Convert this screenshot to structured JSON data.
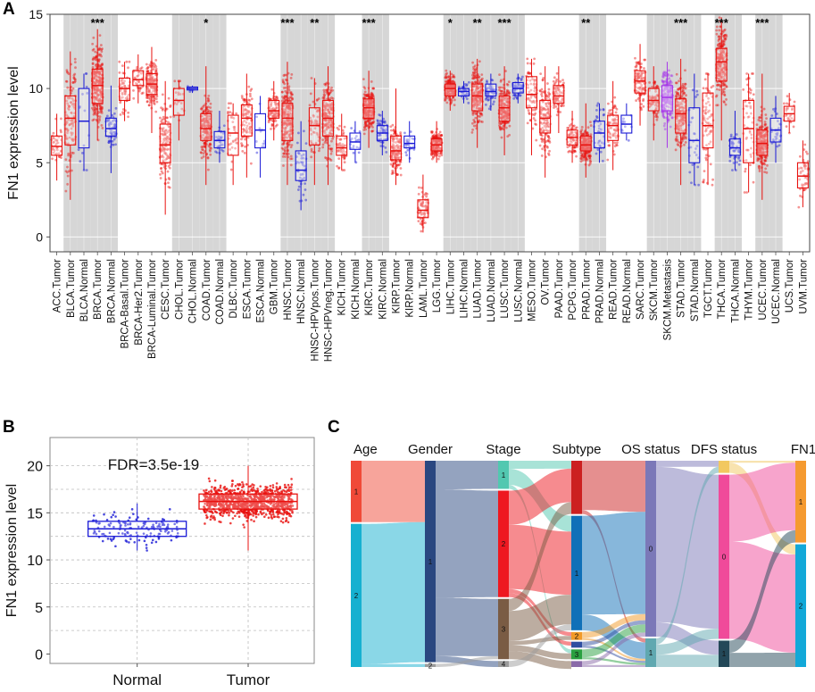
{
  "panels": {
    "a": "A",
    "b": "B",
    "c": "C"
  },
  "chart_data": [
    {
      "type": "box",
      "ylabel": "FN1 expression level",
      "ylim": [
        -1,
        15
      ],
      "yticks": [
        0,
        5,
        10,
        15
      ],
      "colors": {
        "tumor": "#e8120f",
        "normal": "#1a1ad6",
        "metastasis": "#a637e8",
        "shade": "#d6d6d6"
      },
      "groups": [
        {
          "label": "ACC.Tumor",
          "kind": "tumor",
          "q1": 5.5,
          "median": 6.1,
          "q3": 6.8,
          "min": 3.8,
          "max": 8.3,
          "n": 40
        },
        {
          "label": "BLCA.Tumor",
          "kind": "tumor",
          "q1": 6.2,
          "median": 8.0,
          "q3": 9.5,
          "min": 2.5,
          "max": 12.5,
          "n": 120,
          "shade": true
        },
        {
          "label": "BLCA.Normal",
          "kind": "normal",
          "q1": 6.0,
          "median": 7.8,
          "q3": 10.0,
          "min": 4.5,
          "max": 11.0,
          "n": 15,
          "shade": true
        },
        {
          "label": "BRCA.Tumor",
          "kind": "tumor",
          "q1": 9.0,
          "median": 10.2,
          "q3": 11.3,
          "min": 6.5,
          "max": 14.0,
          "n": 300,
          "shade": true,
          "sig": "***"
        },
        {
          "label": "BRCA.Normal",
          "kind": "normal",
          "q1": 6.8,
          "median": 7.3,
          "q3": 8.0,
          "min": 4.3,
          "max": 10.2,
          "n": 60,
          "shade": true
        },
        {
          "label": "BRCA-Basal.Tumor",
          "kind": "tumor",
          "q1": 9.2,
          "median": 10.0,
          "q3": 10.7,
          "min": 7.8,
          "max": 11.8,
          "n": 60
        },
        {
          "label": "BRCA-Her2.Tumor",
          "kind": "tumor",
          "q1": 10.2,
          "median": 10.6,
          "q3": 11.2,
          "min": 9.0,
          "max": 12.3,
          "n": 40
        },
        {
          "label": "BRCA-Luminal.Tumor",
          "kind": "tumor",
          "q1": 9.6,
          "median": 10.3,
          "q3": 11.0,
          "min": 7.0,
          "max": 12.8,
          "n": 180
        },
        {
          "label": "CESC.Tumor",
          "kind": "tumor",
          "q1": 5.0,
          "median": 6.2,
          "q3": 7.6,
          "min": 1.5,
          "max": 10.5,
          "n": 150
        },
        {
          "label": "CHOL.Tumor",
          "kind": "tumor",
          "q1": 8.2,
          "median": 9.2,
          "q3": 10.0,
          "min": 6.5,
          "max": 10.5,
          "n": 25,
          "shade": true
        },
        {
          "label": "CHOL.Normal",
          "kind": "normal",
          "q1": 9.9,
          "median": 10.0,
          "q3": 10.1,
          "min": 9.7,
          "max": 10.2,
          "n": 8,
          "shade": true
        },
        {
          "label": "COAD.Tumor",
          "kind": "tumor",
          "q1": 6.5,
          "median": 7.3,
          "q3": 8.3,
          "min": 3.5,
          "max": 11.5,
          "n": 180,
          "shade": true,
          "sig": "*"
        },
        {
          "label": "COAD.Normal",
          "kind": "normal",
          "q1": 6.0,
          "median": 6.5,
          "q3": 7.1,
          "min": 5.0,
          "max": 8.5,
          "n": 30,
          "shade": true
        },
        {
          "label": "DLBC.Tumor",
          "kind": "tumor",
          "q1": 5.5,
          "median": 7.0,
          "q3": 8.2,
          "min": 3.5,
          "max": 9.0,
          "n": 40
        },
        {
          "label": "ESCA.Tumor",
          "kind": "tumor",
          "q1": 6.8,
          "median": 8.0,
          "q3": 8.9,
          "min": 4.0,
          "max": 11.0,
          "n": 100
        },
        {
          "label": "ESCA.Normal",
          "kind": "normal",
          "q1": 6.0,
          "median": 7.2,
          "q3": 8.3,
          "min": 4.0,
          "max": 9.5,
          "n": 12
        },
        {
          "label": "GBM.Tumor",
          "kind": "tumor",
          "q1": 8.0,
          "median": 8.5,
          "q3": 9.2,
          "min": 6.5,
          "max": 10.5,
          "n": 100
        },
        {
          "label": "HNSC.Tumor",
          "kind": "tumor",
          "q1": 6.5,
          "median": 8.0,
          "q3": 9.0,
          "min": 3.5,
          "max": 11.8,
          "n": 250,
          "shade": true,
          "sig": "***"
        },
        {
          "label": "HNSC.Normal",
          "kind": "normal",
          "q1": 3.8,
          "median": 4.5,
          "q3": 5.8,
          "min": 1.8,
          "max": 7.8,
          "n": 44,
          "shade": true
        },
        {
          "label": "HNSC-HPVpos.Tumor",
          "kind": "tumor",
          "q1": 6.2,
          "median": 7.5,
          "q3": 8.7,
          "min": 3.5,
          "max": 10.7,
          "n": 60,
          "shade": true,
          "sig": "**"
        },
        {
          "label": "HNSC-HPVneg.Tumor",
          "kind": "tumor",
          "q1": 6.8,
          "median": 8.0,
          "q3": 9.2,
          "min": 3.5,
          "max": 11.5,
          "n": 200,
          "shade": true
        },
        {
          "label": "KICH.Tumor",
          "kind": "tumor",
          "q1": 5.5,
          "median": 6.0,
          "q3": 6.8,
          "min": 4.5,
          "max": 8.3,
          "n": 60
        },
        {
          "label": "KICH.Normal",
          "kind": "normal",
          "q1": 5.9,
          "median": 6.4,
          "q3": 7.0,
          "min": 5.0,
          "max": 7.8,
          "n": 20
        },
        {
          "label": "KIRC.Tumor",
          "kind": "tumor",
          "q1": 8.0,
          "median": 8.7,
          "q3": 9.3,
          "min": 6.0,
          "max": 11.2,
          "n": 250,
          "shade": true,
          "sig": "***"
        },
        {
          "label": "KIRC.Normal",
          "kind": "normal",
          "q1": 6.5,
          "median": 7.0,
          "q3": 7.5,
          "min": 5.5,
          "max": 8.5,
          "n": 60,
          "shade": true
        },
        {
          "label": "KIRP.Tumor",
          "kind": "tumor",
          "q1": 5.2,
          "median": 5.8,
          "q3": 6.8,
          "min": 3.5,
          "max": 10.0,
          "n": 150
        },
        {
          "label": "KIRP.Normal",
          "kind": "normal",
          "q1": 6.0,
          "median": 6.3,
          "q3": 6.8,
          "min": 5.0,
          "max": 7.8,
          "n": 30
        },
        {
          "label": "LAML.Tumor",
          "kind": "tumor",
          "q1": 1.3,
          "median": 1.8,
          "q3": 2.5,
          "min": 0.3,
          "max": 4.2,
          "n": 80
        },
        {
          "label": "LGG.Tumor",
          "kind": "tumor",
          "q1": 5.8,
          "median": 6.2,
          "q3": 6.6,
          "min": 5.0,
          "max": 7.8,
          "n": 200
        },
        {
          "label": "LIHC.Tumor",
          "kind": "tumor",
          "q1": 9.5,
          "median": 10.0,
          "q3": 10.3,
          "min": 8.5,
          "max": 11.2,
          "n": 180,
          "shade": true,
          "sig": "*"
        },
        {
          "label": "LIHC.Normal",
          "kind": "normal",
          "q1": 9.5,
          "median": 9.8,
          "q3": 10.0,
          "min": 9.0,
          "max": 10.5,
          "n": 40,
          "shade": true
        },
        {
          "label": "LUAD.Tumor",
          "kind": "tumor",
          "q1": 8.5,
          "median": 9.5,
          "q3": 10.3,
          "min": 6.0,
          "max": 12.0,
          "n": 220,
          "shade": true,
          "sig": "**"
        },
        {
          "label": "LUAD.Normal",
          "kind": "normal",
          "q1": 9.5,
          "median": 9.8,
          "q3": 10.3,
          "min": 8.5,
          "max": 11.0,
          "n": 50,
          "shade": true
        },
        {
          "label": "LUSC.Tumor",
          "kind": "tumor",
          "q1": 7.8,
          "median": 8.7,
          "q3": 9.5,
          "min": 5.5,
          "max": 11.5,
          "n": 220,
          "shade": true,
          "sig": "***"
        },
        {
          "label": "LUSC.Normal",
          "kind": "normal",
          "q1": 9.7,
          "median": 10.0,
          "q3": 10.4,
          "min": 9.0,
          "max": 11.0,
          "n": 50,
          "shade": true
        },
        {
          "label": "MESO.Tumor",
          "kind": "tumor",
          "q1": 8.7,
          "median": 9.6,
          "q3": 10.8,
          "min": 5.5,
          "max": 12.0,
          "n": 80
        },
        {
          "label": "OV.Tumor",
          "kind": "tumor",
          "q1": 7.0,
          "median": 8.0,
          "q3": 9.2,
          "min": 4.0,
          "max": 11.5,
          "n": 150
        },
        {
          "label": "PAAD.Tumor",
          "kind": "tumor",
          "q1": 9.0,
          "median": 9.5,
          "q3": 10.2,
          "min": 7.0,
          "max": 11.5,
          "n": 80
        },
        {
          "label": "PCPG.Tumor",
          "kind": "tumor",
          "q1": 6.2,
          "median": 6.7,
          "q3": 7.2,
          "min": 5.0,
          "max": 8.5,
          "n": 80
        },
        {
          "label": "PRAD.Tumor",
          "kind": "tumor",
          "q1": 5.8,
          "median": 6.2,
          "q3": 6.8,
          "min": 4.0,
          "max": 9.0,
          "n": 220,
          "shade": true,
          "sig": "**"
        },
        {
          "label": "PRAD.Normal",
          "kind": "normal",
          "q1": 6.0,
          "median": 7.0,
          "q3": 7.8,
          "min": 5.0,
          "max": 9.0,
          "n": 40,
          "shade": true
        },
        {
          "label": "READ.Tumor",
          "kind": "tumor",
          "q1": 6.5,
          "median": 7.5,
          "q3": 8.2,
          "min": 4.5,
          "max": 10.5,
          "n": 80
        },
        {
          "label": "READ.Normal",
          "kind": "normal",
          "q1": 7.0,
          "median": 7.6,
          "q3": 8.2,
          "min": 6.5,
          "max": 9.0,
          "n": 10
        },
        {
          "label": "SARC.Tumor",
          "kind": "tumor",
          "q1": 9.7,
          "median": 10.5,
          "q3": 11.2,
          "min": 7.5,
          "max": 13.0,
          "n": 120
        },
        {
          "label": "SKCM.Tumor",
          "kind": "tumor",
          "q1": 8.5,
          "median": 9.2,
          "q3": 10.0,
          "min": 6.5,
          "max": 11.5,
          "n": 70,
          "shade": true
        },
        {
          "label": "SKCM.Metastasis",
          "kind": "metastasis",
          "q1": 8.5,
          "median": 9.4,
          "q3": 10.2,
          "min": 6.0,
          "max": 11.8,
          "n": 200,
          "shade": true
        },
        {
          "label": "STAD.Tumor",
          "kind": "tumor",
          "q1": 7.0,
          "median": 8.3,
          "q3": 9.3,
          "min": 3.5,
          "max": 12.0,
          "n": 200,
          "shade": true,
          "sig": "***"
        },
        {
          "label": "STAD.Normal",
          "kind": "normal",
          "q1": 5.0,
          "median": 6.5,
          "q3": 8.7,
          "min": 3.5,
          "max": 11.0,
          "n": 30,
          "shade": true
        },
        {
          "label": "TGCT.Tumor",
          "kind": "tumor",
          "q1": 6.0,
          "median": 7.5,
          "q3": 9.7,
          "min": 3.5,
          "max": 11.0,
          "n": 80
        },
        {
          "label": "THCA.Tumor",
          "kind": "tumor",
          "q1": 10.5,
          "median": 11.8,
          "q3": 12.7,
          "min": 6.5,
          "max": 14.8,
          "n": 250,
          "shade": true,
          "sig": "***"
        },
        {
          "label": "THCA.Normal",
          "kind": "normal",
          "q1": 5.5,
          "median": 6.0,
          "q3": 6.6,
          "min": 4.5,
          "max": 8.5,
          "n": 50,
          "shade": true
        },
        {
          "label": "THYM.Tumor",
          "kind": "tumor",
          "q1": 5.0,
          "median": 7.3,
          "q3": 9.2,
          "min": 3.0,
          "max": 11.0,
          "n": 60
        },
        {
          "label": "UCEC.Tumor",
          "kind": "tumor",
          "q1": 5.5,
          "median": 6.3,
          "q3": 7.2,
          "min": 2.5,
          "max": 11.0,
          "n": 250,
          "shade": true,
          "sig": "***"
        },
        {
          "label": "UCEC.Normal",
          "kind": "normal",
          "q1": 6.4,
          "median": 7.2,
          "q3": 8.0,
          "min": 5.0,
          "max": 9.5,
          "n": 30,
          "shade": true
        },
        {
          "label": "UCS.Tumor",
          "kind": "tumor",
          "q1": 7.8,
          "median": 8.3,
          "q3": 8.8,
          "min": 7.0,
          "max": 9.7,
          "n": 30
        },
        {
          "label": "UVM.Tumor",
          "kind": "tumor",
          "q1": 3.3,
          "median": 4.1,
          "q3": 5.0,
          "min": 2.0,
          "max": 6.5,
          "n": 50
        }
      ]
    },
    {
      "type": "box",
      "ylabel": "FN1 expression level",
      "ylim": [
        -1,
        23
      ],
      "yticks": [
        0,
        5,
        10,
        15,
        20
      ],
      "annotation": "FDR=3.5e-19",
      "groups": [
        {
          "label": "Normal",
          "color": "#1a1ad6",
          "q1": 12.5,
          "median": 13.3,
          "q3": 14.1,
          "min": 11.0,
          "max": 16.0,
          "n": 150
        },
        {
          "label": "Tumor",
          "color": "#e8120f",
          "q1": 15.4,
          "median": 16.2,
          "q3": 17.0,
          "min": 11.0,
          "max": 20.0,
          "n": 1000
        }
      ]
    },
    {
      "type": "sankey",
      "columns": [
        {
          "label": "Age",
          "nodes": [
            {
              "name": "1",
              "value": 0.3,
              "color": "#f04a38"
            },
            {
              "name": "2",
              "value": 0.7,
              "color": "#16b0d0"
            }
          ]
        },
        {
          "label": "Gender",
          "nodes": [
            {
              "name": "1",
              "value": 0.985,
              "color": "#2a4780"
            },
            {
              "name": "2",
              "value": 0.015,
              "color": "#9b9b9b"
            }
          ]
        },
        {
          "label": "Stage",
          "nodes": [
            {
              "name": "1",
              "value": 0.14,
              "color": "#52c8b0"
            },
            {
              "name": "2",
              "value": 0.53,
              "color": "#ee1820"
            },
            {
              "name": "3",
              "value": 0.3,
              "color": "#7a5c44"
            },
            {
              "name": "4",
              "value": 0.03,
              "color": "#9b9b9b"
            }
          ]
        },
        {
          "label": "Subtype",
          "nodes": [
            {
              "name": "",
              "value": 0.27,
              "color": "#cc2020"
            },
            {
              "name": "1",
              "value": 0.58,
              "color": "#1070b8"
            },
            {
              "name": "2",
              "value": 0.04,
              "color": "#f29a28"
            },
            {
              "name": "",
              "value": 0.03,
              "color": "#2f4ea0"
            },
            {
              "name": "3",
              "value": 0.05,
              "color": "#2aa040"
            },
            {
              "name": "",
              "value": 0.03,
              "color": "#8a6aa8"
            }
          ]
        },
        {
          "label": "OS status",
          "nodes": [
            {
              "name": "0",
              "value": 0.86,
              "color": "#7b78b8"
            },
            {
              "name": "1",
              "value": 0.14,
              "color": "#60a8b0"
            }
          ]
        },
        {
          "label": "DFS status",
          "nodes": [
            {
              "name": "",
              "value": 0.06,
              "color": "#f2c860"
            },
            {
              "name": "0",
              "value": 0.81,
              "color": "#f04a9a"
            },
            {
              "name": "1",
              "value": 0.13,
              "color": "#234858"
            }
          ]
        },
        {
          "label": "FN1",
          "nodes": [
            {
              "name": "1",
              "value": 0.4,
              "color": "#f59a30"
            },
            {
              "name": "2",
              "value": 0.6,
              "color": "#12a8d8"
            }
          ]
        }
      ]
    }
  ]
}
